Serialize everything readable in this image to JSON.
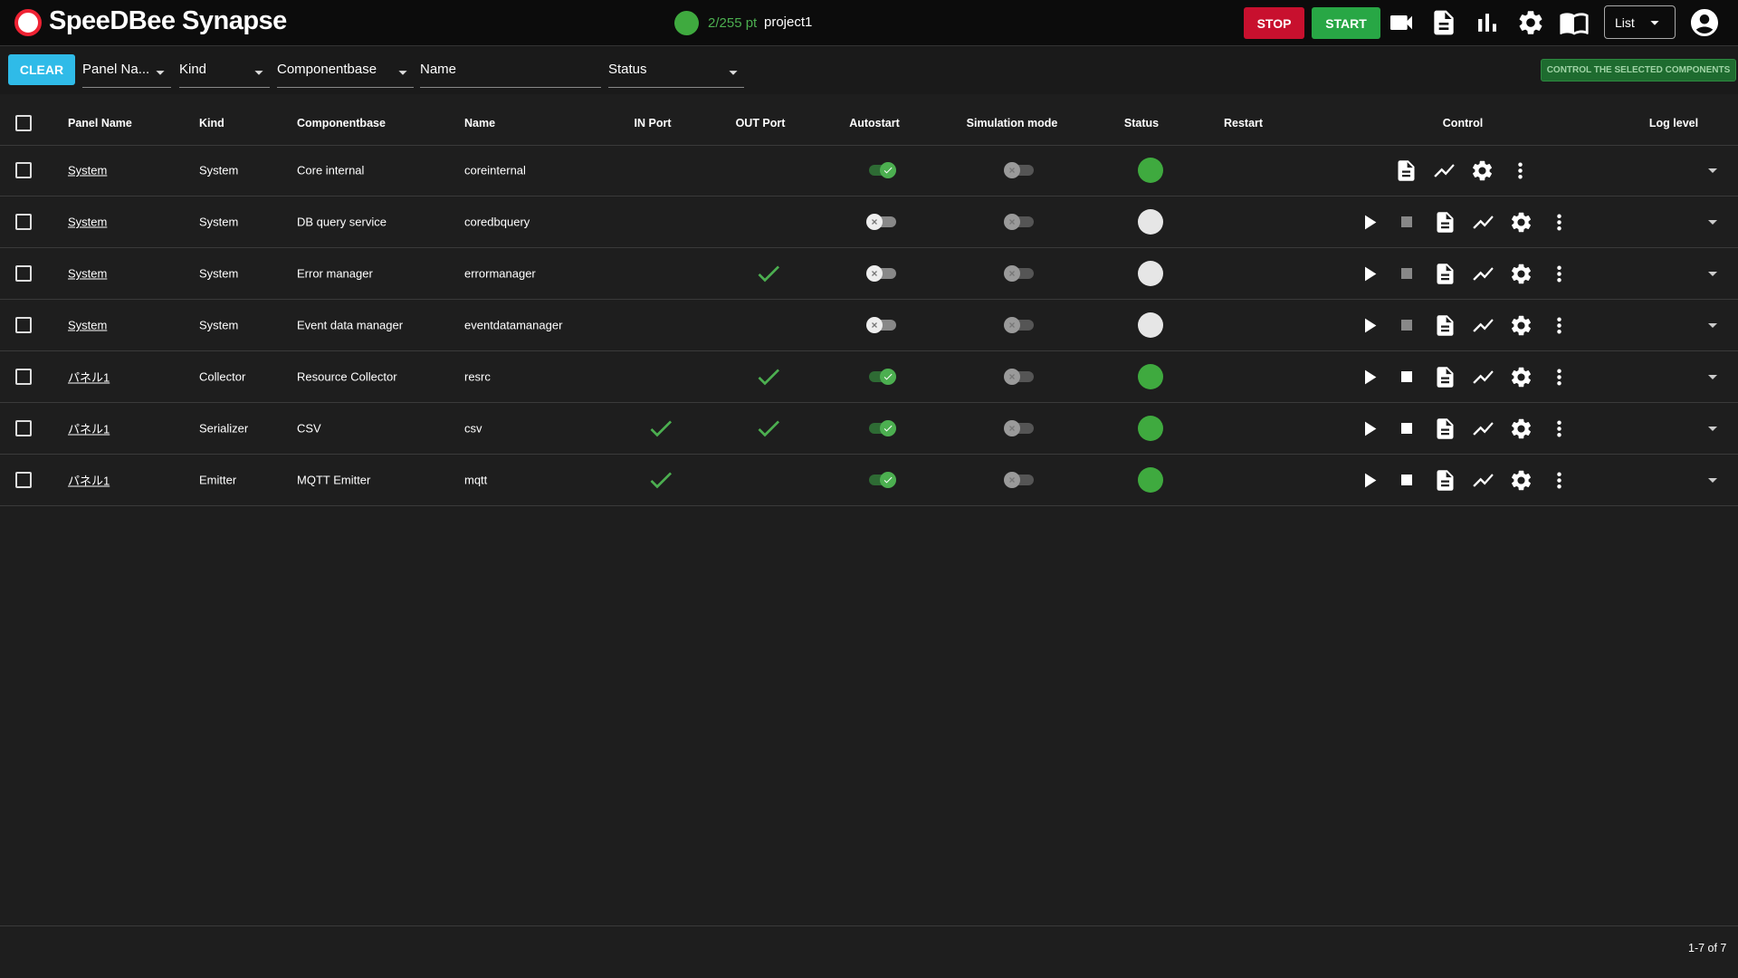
{
  "header": {
    "brand": "SpeeDBee Synapse",
    "point_count": "2/255 pt",
    "project": "project1",
    "stop": "STOP",
    "start": "START",
    "view": "List"
  },
  "filters": {
    "clear": "CLEAR",
    "panel_name": "Panel Na...",
    "kind": "Kind",
    "componentbase": "Componentbase",
    "name": "Name",
    "status": "Status",
    "control_selected": "CONTROL THE SELECTED COMPONENTS"
  },
  "table": {
    "columns": [
      "Panel Name",
      "Kind",
      "Componentbase",
      "Name",
      "IN Port",
      "OUT Port",
      "Autostart",
      "Simulation mode",
      "Status",
      "Restart",
      "Control",
      "Log level"
    ],
    "rows": [
      {
        "panel": "System",
        "kind": "System",
        "componentbase": "Core internal",
        "name": "coreinternal",
        "in_port": false,
        "out_port": false,
        "autostart": true,
        "simulation": false,
        "running": true,
        "startable": false
      },
      {
        "panel": "System",
        "kind": "System",
        "componentbase": "DB query service",
        "name": "coredbquery",
        "in_port": false,
        "out_port": false,
        "autostart": false,
        "simulation": false,
        "running": false,
        "startable": true
      },
      {
        "panel": "System",
        "kind": "System",
        "componentbase": "Error manager",
        "name": "errormanager",
        "in_port": false,
        "out_port": true,
        "autostart": false,
        "simulation": false,
        "running": false,
        "startable": true
      },
      {
        "panel": "System",
        "kind": "System",
        "componentbase": "Event data manager",
        "name": "eventdatamanager",
        "in_port": false,
        "out_port": false,
        "autostart": false,
        "simulation": false,
        "running": false,
        "startable": true
      },
      {
        "panel": "パネル1",
        "kind": "Collector",
        "componentbase": "Resource Collector",
        "name": "resrc",
        "in_port": false,
        "out_port": true,
        "autostart": true,
        "simulation": false,
        "running": true,
        "startable": true
      },
      {
        "panel": "パネル1",
        "kind": "Serializer",
        "componentbase": "CSV",
        "name": "csv",
        "in_port": true,
        "out_port": true,
        "autostart": true,
        "simulation": false,
        "running": true,
        "startable": true
      },
      {
        "panel": "パネル1",
        "kind": "Emitter",
        "componentbase": "MQTT Emitter",
        "name": "mqtt",
        "in_port": true,
        "out_port": false,
        "autostart": true,
        "simulation": false,
        "running": true,
        "startable": true
      }
    ]
  },
  "footer": {
    "range": "1-7 of 7"
  }
}
